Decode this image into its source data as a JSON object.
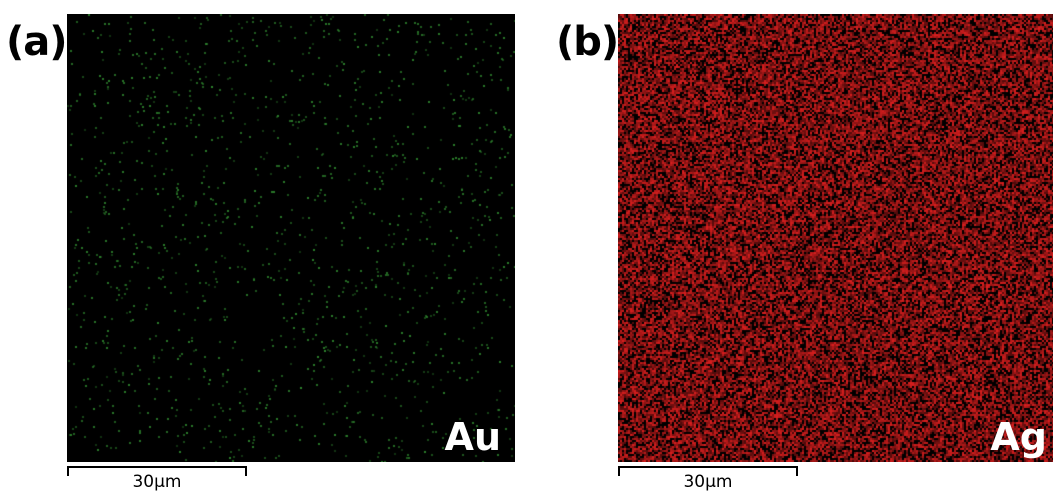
{
  "panels": [
    {
      "label": "(a)",
      "element": "Au",
      "scale_text": "30µm",
      "dot_color": "#2f8a2f",
      "background": "#000000"
    },
    {
      "label": "(b)",
      "element": "Ag",
      "scale_text": "30µm",
      "dot_color": "#d81e1e",
      "background": "#000000"
    }
  ]
}
